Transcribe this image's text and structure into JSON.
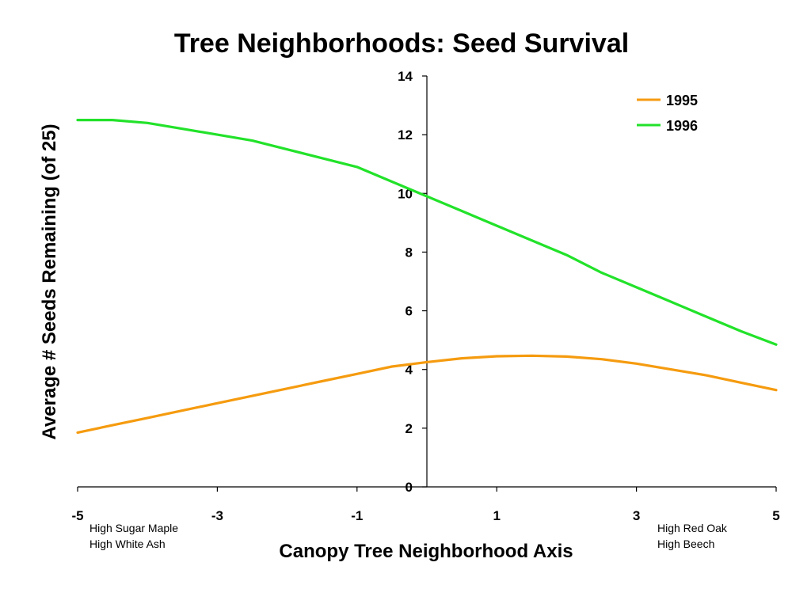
{
  "chart_data": {
    "type": "line",
    "title": "Tree Neighborhoods: Seed Survival",
    "xlabel": "Canopy Tree Neighborhood Axis",
    "ylabel": "Average # Seeds Remaining (of 25)",
    "xlim": [
      -5,
      5
    ],
    "ylim": [
      0,
      14
    ],
    "x_ticks": [
      "-5",
      "-3",
      "-1",
      "1",
      "3",
      "5"
    ],
    "y_ticks": [
      "0",
      "2",
      "4",
      "6",
      "8",
      "10",
      "12",
      "14"
    ],
    "grid": false,
    "legend_position": "top-right",
    "x_annotations": {
      "left": [
        "High Sugar Maple",
        "High White Ash"
      ],
      "right": [
        "High Red Oak",
        "High Beech"
      ]
    },
    "x": [
      -5,
      -4.5,
      -4,
      -3.5,
      -3,
      -2.5,
      -2,
      -1.5,
      -1,
      -0.5,
      0,
      0.5,
      1,
      1.5,
      2,
      2.5,
      3,
      3.5,
      4,
      4.5,
      5
    ],
    "series": [
      {
        "name": "1995",
        "color": "#f59b0f",
        "values": [
          1.85,
          2.1,
          2.35,
          2.6,
          2.85,
          3.1,
          3.35,
          3.6,
          3.85,
          4.1,
          4.25,
          4.38,
          4.45,
          4.47,
          4.44,
          4.35,
          4.2,
          4.0,
          3.8,
          3.55,
          3.3
        ]
      },
      {
        "name": "1996",
        "color": "#22e22a",
        "values": [
          12.5,
          12.5,
          12.4,
          12.2,
          12.0,
          11.8,
          11.5,
          11.2,
          10.9,
          10.4,
          9.9,
          9.4,
          8.9,
          8.4,
          7.9,
          7.3,
          6.8,
          6.3,
          5.8,
          5.3,
          4.85
        ]
      }
    ]
  }
}
